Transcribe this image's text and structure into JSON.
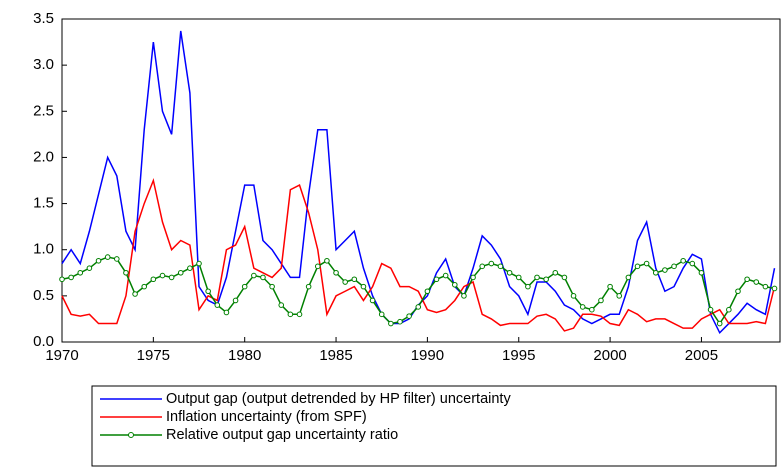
{
  "chart_data": {
    "type": "line",
    "x": [
      1970,
      1970.5,
      1971,
      1971.5,
      1972,
      1972.5,
      1973,
      1973.5,
      1974,
      1974.5,
      1975,
      1975.5,
      1976,
      1976.5,
      1977,
      1977.5,
      1978,
      1978.5,
      1979,
      1979.5,
      1980,
      1980.5,
      1981,
      1981.5,
      1982,
      1982.5,
      1983,
      1983.5,
      1984,
      1984.5,
      1985,
      1985.5,
      1986,
      1986.5,
      1987,
      1987.5,
      1988,
      1988.5,
      1989,
      1989.5,
      1990,
      1990.5,
      1991,
      1991.5,
      1992,
      1992.5,
      1993,
      1993.5,
      1994,
      1994.5,
      1995,
      1995.5,
      1996,
      1996.5,
      1997,
      1997.5,
      1998,
      1998.5,
      1999,
      1999.5,
      2000,
      2000.5,
      2001,
      2001.5,
      2002,
      2002.5,
      2003,
      2003.5,
      2004,
      2004.5,
      2005,
      2005.5,
      2006,
      2006.5,
      2007,
      2007.5,
      2008,
      2008.5,
      2009
    ],
    "series": [
      {
        "name": "Output gap (output detrended by HP filter) uncertainty",
        "color": "#0000ff",
        "values": [
          0.85,
          1.0,
          0.85,
          1.2,
          1.6,
          2.0,
          1.8,
          1.2,
          1.0,
          2.3,
          3.25,
          2.5,
          2.25,
          3.37,
          2.7,
          0.6,
          0.45,
          0.4,
          0.7,
          1.2,
          1.7,
          1.7,
          1.1,
          1.0,
          0.85,
          0.7,
          0.7,
          1.6,
          2.3,
          2.3,
          1.0,
          1.1,
          1.2,
          0.8,
          0.5,
          0.3,
          0.2,
          0.2,
          0.25,
          0.4,
          0.5,
          0.75,
          0.9,
          0.6,
          0.5,
          0.8,
          1.15,
          1.05,
          0.9,
          0.6,
          0.5,
          0.3,
          0.65,
          0.65,
          0.55,
          0.4,
          0.35,
          0.25,
          0.2,
          0.25,
          0.3,
          0.3,
          0.6,
          1.1,
          1.3,
          0.8,
          0.55,
          0.6,
          0.8,
          0.95,
          0.9,
          0.3,
          0.1,
          0.2,
          0.3,
          0.42,
          0.35,
          0.3,
          0.8
        ]
      },
      {
        "name": "Inflation uncertainty (from SPF)",
        "color": "#ff0000",
        "values": [
          0.5,
          0.3,
          0.28,
          0.3,
          0.2,
          0.2,
          0.2,
          0.5,
          1.2,
          1.5,
          1.75,
          1.3,
          1.0,
          1.1,
          1.05,
          0.35,
          0.5,
          0.45,
          1.0,
          1.05,
          1.25,
          0.8,
          0.75,
          0.7,
          0.8,
          1.65,
          1.7,
          1.4,
          1.0,
          0.3,
          0.5,
          0.55,
          0.6,
          0.45,
          0.6,
          0.85,
          0.8,
          0.6,
          0.6,
          0.55,
          0.35,
          0.32,
          0.35,
          0.45,
          0.6,
          0.65,
          0.3,
          0.25,
          0.18,
          0.2,
          0.2,
          0.2,
          0.28,
          0.3,
          0.25,
          0.12,
          0.15,
          0.3,
          0.3,
          0.28,
          0.2,
          0.18,
          0.35,
          0.3,
          0.22,
          0.25,
          0.25,
          0.2,
          0.15,
          0.15,
          0.25,
          0.3,
          0.35,
          0.2,
          0.2,
          0.2,
          0.22,
          0.2,
          0.6
        ]
      },
      {
        "name": "Relative output gap uncertainty ratio",
        "color": "#008000",
        "values": [
          0.68,
          0.7,
          0.75,
          0.8,
          0.88,
          0.92,
          0.9,
          0.75,
          0.52,
          0.6,
          0.68,
          0.72,
          0.7,
          0.75,
          0.8,
          0.85,
          0.55,
          0.4,
          0.32,
          0.45,
          0.6,
          0.72,
          0.7,
          0.6,
          0.4,
          0.3,
          0.3,
          0.6,
          0.82,
          0.88,
          0.75,
          0.65,
          0.68,
          0.6,
          0.45,
          0.3,
          0.2,
          0.22,
          0.28,
          0.38,
          0.55,
          0.68,
          0.72,
          0.62,
          0.5,
          0.7,
          0.82,
          0.85,
          0.82,
          0.75,
          0.7,
          0.6,
          0.7,
          0.68,
          0.75,
          0.7,
          0.5,
          0.38,
          0.35,
          0.45,
          0.6,
          0.5,
          0.7,
          0.82,
          0.85,
          0.75,
          0.78,
          0.82,
          0.88,
          0.85,
          0.75,
          0.35,
          0.2,
          0.35,
          0.55,
          0.68,
          0.65,
          0.6,
          0.58
        ]
      }
    ],
    "markers": [
      "none",
      "none",
      "circle"
    ],
    "xlim": [
      1970,
      2009.3
    ],
    "xticks": [
      1970,
      1975,
      1980,
      1985,
      1990,
      1995,
      2000,
      2005
    ],
    "ylim": [
      0,
      3.5
    ],
    "yticks": [
      {
        "value": 0,
        "label": "0.0"
      },
      0.5,
      {
        "value": 1,
        "label": "1.0"
      },
      1.5,
      {
        "value": 2,
        "label": "2.0"
      },
      2.5,
      {
        "value": 3,
        "label": "3.0"
      },
      3.5
    ],
    "grid": false
  }
}
